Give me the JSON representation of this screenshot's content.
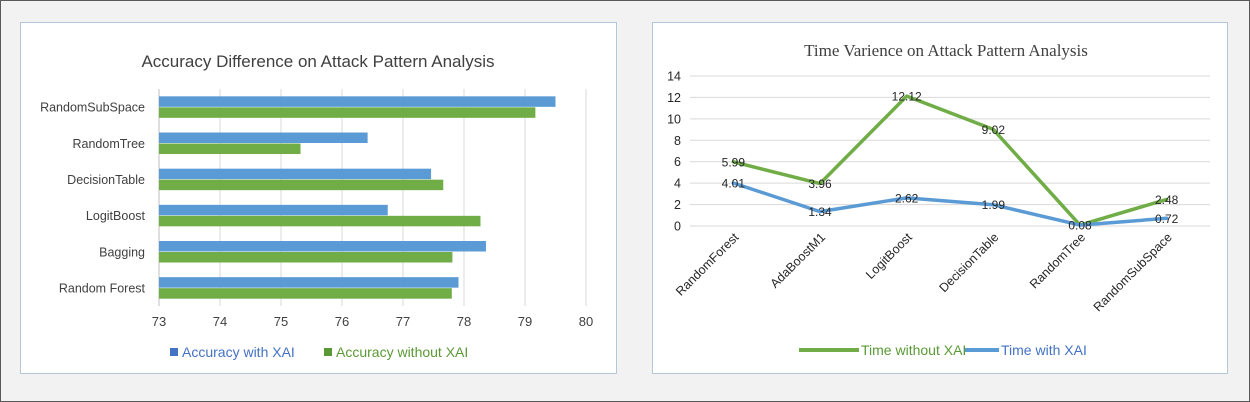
{
  "colors": {
    "blue": "#5b9bd5",
    "green": "#70ad47",
    "blue_legend": "#4472c4",
    "green_legend": "#5a9a36",
    "grid": "#d9d9d9",
    "text": "#404040"
  },
  "chart_data": [
    {
      "type": "bar",
      "orientation": "horizontal",
      "title": "Accuracy Difference on Attack Pattern Analysis",
      "categories": [
        "RandomSubSpace",
        "RandomTree",
        "DecisionTable",
        "LogitBoost",
        "Bagging",
        "Random Forest"
      ],
      "xlim": [
        73,
        80
      ],
      "xticks": [
        "73",
        "74",
        "75",
        "76",
        "77",
        "78",
        "79",
        "80"
      ],
      "grid": true,
      "legend_position": "bottom",
      "series": [
        {
          "name": "Accuracy with XAI",
          "color": "blue",
          "values": [
            79.5,
            76.42,
            77.46,
            76.75,
            78.36,
            77.91
          ]
        },
        {
          "name": "Accuracy without XAI",
          "color": "green",
          "values": [
            79.17,
            75.32,
            77.66,
            78.27,
            77.81,
            77.8
          ]
        }
      ]
    },
    {
      "type": "line",
      "title": "Time Varience on Attack Pattern Analysis",
      "categories": [
        "RandomForest",
        "AdaBoostM1",
        "LogitBoost",
        "DecisionTable",
        "RandomTree",
        "RandomSubSpace"
      ],
      "ylim": [
        0,
        14
      ],
      "yticks": [
        "0",
        "2",
        "4",
        "6",
        "8",
        "10",
        "12",
        "14"
      ],
      "grid": true,
      "legend_position": "bottom",
      "series": [
        {
          "name": "Time without XAI",
          "color": "green",
          "values": [
            5.99,
            3.96,
            12.12,
            9.02,
            0.08,
            2.48
          ],
          "labels": [
            "5.99",
            "3.96",
            "12.12",
            "9.02",
            "",
            "2.48"
          ]
        },
        {
          "name": "Time with XAI",
          "color": "blue",
          "values": [
            4.01,
            1.34,
            2.62,
            1.99,
            0.08,
            0.72
          ],
          "labels": [
            "4.01",
            "1.34",
            "2.62",
            "1.99",
            "0.08",
            "0.72"
          ]
        }
      ]
    }
  ]
}
